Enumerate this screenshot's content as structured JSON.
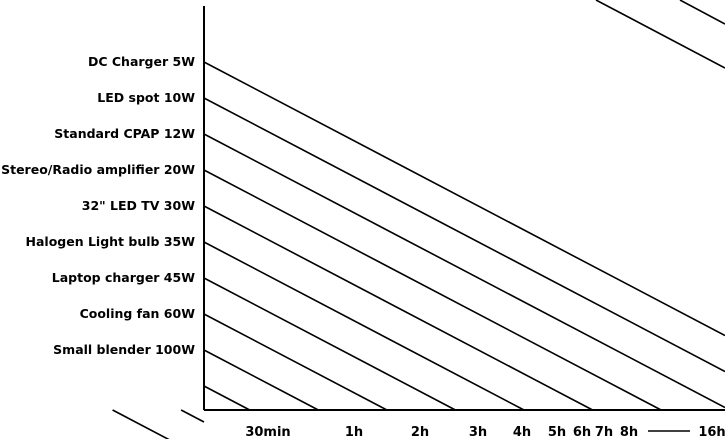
{
  "chart_data": {
    "type": "line",
    "title": "",
    "xlabel": "",
    "ylabel": "",
    "x_ticks": [
      "30min",
      "1h",
      "2h",
      "3h",
      "4h",
      "5h",
      "6h",
      "7h",
      "8h",
      "16h"
    ],
    "series": [
      {
        "name": "DC Charger 5W"
      },
      {
        "name": "LED spot 10W"
      },
      {
        "name": "Standard CPAP 12W"
      },
      {
        "name": "Stereo/Radio amplifier 20W"
      },
      {
        "name": "32\" LED TV 30W"
      },
      {
        "name": "Halogen Light bulb 35W"
      },
      {
        "name": "Laptop charger 45W"
      },
      {
        "name": "Cooling fan 60W"
      },
      {
        "name": "Small blender 100W"
      }
    ],
    "grid": false,
    "legend": "none"
  }
}
